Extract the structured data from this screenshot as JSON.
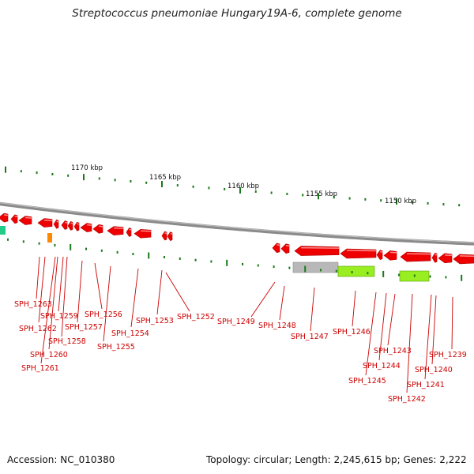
{
  "title": "Streptococcus pneumoniae Hungary19A-6, complete genome",
  "footer": {
    "accession": "Accession: NC_010380",
    "summary": "Topology: circular; Length: 2,245,615 bp; Genes: 2,222"
  },
  "colors": {
    "backbone": "#8a8a8a",
    "gene_red": "#ee0000",
    "tick_green": "#1a7a1a",
    "label_red": "#cc0000",
    "feature_gray": "#b8b8b8",
    "feature_lime": "#99ee22",
    "feature_orange": "#ff8800",
    "feature_teal": "#22cc88"
  },
  "scale_labels": [
    "1170 kbp",
    "1165 kbp",
    "1160 kbp",
    "1155 kbp",
    "1150 kbp"
  ],
  "gene_labels": [
    "SPH_1263",
    "SPH_1262",
    "SPH_1261",
    "SPH_1260",
    "SPH_1259",
    "SPH_1258",
    "SPH_1257",
    "SPH_1256",
    "SPH_1255",
    "SPH_1254",
    "SPH_1253",
    "SPH_1252",
    "SPH_1249",
    "SPH_1248",
    "SPH_1247",
    "SPH_1246",
    "SPH_1245",
    "SPH_1244",
    "SPH_1243",
    "SPH_1242",
    "SPH_1241",
    "SPH_1240",
    "SPH_1239"
  ]
}
